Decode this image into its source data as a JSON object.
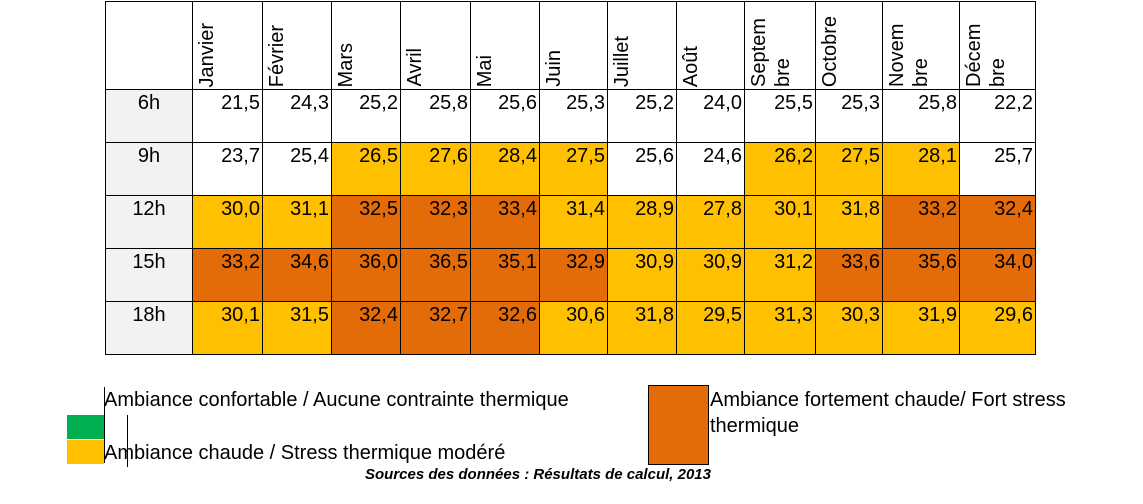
{
  "colors": {
    "comfortable": "#00b050",
    "warm": "#ffc000",
    "hot": "#e36c09",
    "none": "#ffffff",
    "row_header": "#f2f2f2"
  },
  "chart_data": {
    "type": "heatmap",
    "title": "",
    "columns": [
      "Janvier",
      "Février",
      "Mars",
      "Avril",
      "Mai",
      "Juin",
      "Juillet",
      "Août",
      "Septem bre",
      "Octobre",
      "Novem bre",
      "Décem bre"
    ],
    "rows": [
      {
        "label": "6h",
        "values": [
          "21,5",
          "24,3",
          "25,2",
          "25,8",
          "25,6",
          "25,3",
          "25,2",
          "24,0",
          "25,5",
          "25,3",
          "25,8",
          "22,2"
        ],
        "classes": [
          "none",
          "none",
          "none",
          "none",
          "none",
          "none",
          "none",
          "none",
          "none",
          "none",
          "none",
          "none"
        ]
      },
      {
        "label": "9h",
        "values": [
          "23,7",
          "25,4",
          "26,5",
          "27,6",
          "28,4",
          "27,5",
          "25,6",
          "24,6",
          "26,2",
          "27,5",
          "28,1",
          "25,7"
        ],
        "classes": [
          "none",
          "none",
          "warm",
          "warm",
          "warm",
          "warm",
          "none",
          "none",
          "warm",
          "warm",
          "warm",
          "none"
        ]
      },
      {
        "label": "12h",
        "values": [
          "30,0",
          "31,1",
          "32,5",
          "32,3",
          "33,4",
          "31,4",
          "28,9",
          "27,8",
          "30,1",
          "31,8",
          "33,2",
          "32,4"
        ],
        "classes": [
          "warm",
          "warm",
          "hot",
          "hot",
          "hot",
          "warm",
          "warm",
          "warm",
          "warm",
          "warm",
          "hot",
          "hot"
        ]
      },
      {
        "label": "15h",
        "values": [
          "33,2",
          "34,6",
          "36,0",
          "36,5",
          "35,1",
          "32,9",
          "30,9",
          "30,9",
          "31,2",
          "33,6",
          "35,6",
          "34,0"
        ],
        "classes": [
          "hot",
          "hot",
          "hot",
          "hot",
          "hot",
          "hot",
          "warm",
          "warm",
          "warm",
          "hot",
          "hot",
          "hot"
        ]
      },
      {
        "label": "18h",
        "values": [
          "30,1",
          "31,5",
          "32,4",
          "32,7",
          "32,6",
          "30,6",
          "31,8",
          "29,5",
          "31,3",
          "30,3",
          "31,9",
          "29,6"
        ],
        "classes": [
          "warm",
          "warm",
          "hot",
          "hot",
          "hot",
          "warm",
          "warm",
          "warm",
          "warm",
          "warm",
          "warm",
          "warm"
        ]
      }
    ]
  },
  "legend": {
    "comfortable": "Ambiance confortable / Aucune contrainte thermique",
    "warm": "Ambiance chaude / Stress thermique modéré",
    "hot": "Ambiance fortement chaude/ Fort stress thermique"
  },
  "source": "Sources des données : Résultats de calcul, 2013"
}
